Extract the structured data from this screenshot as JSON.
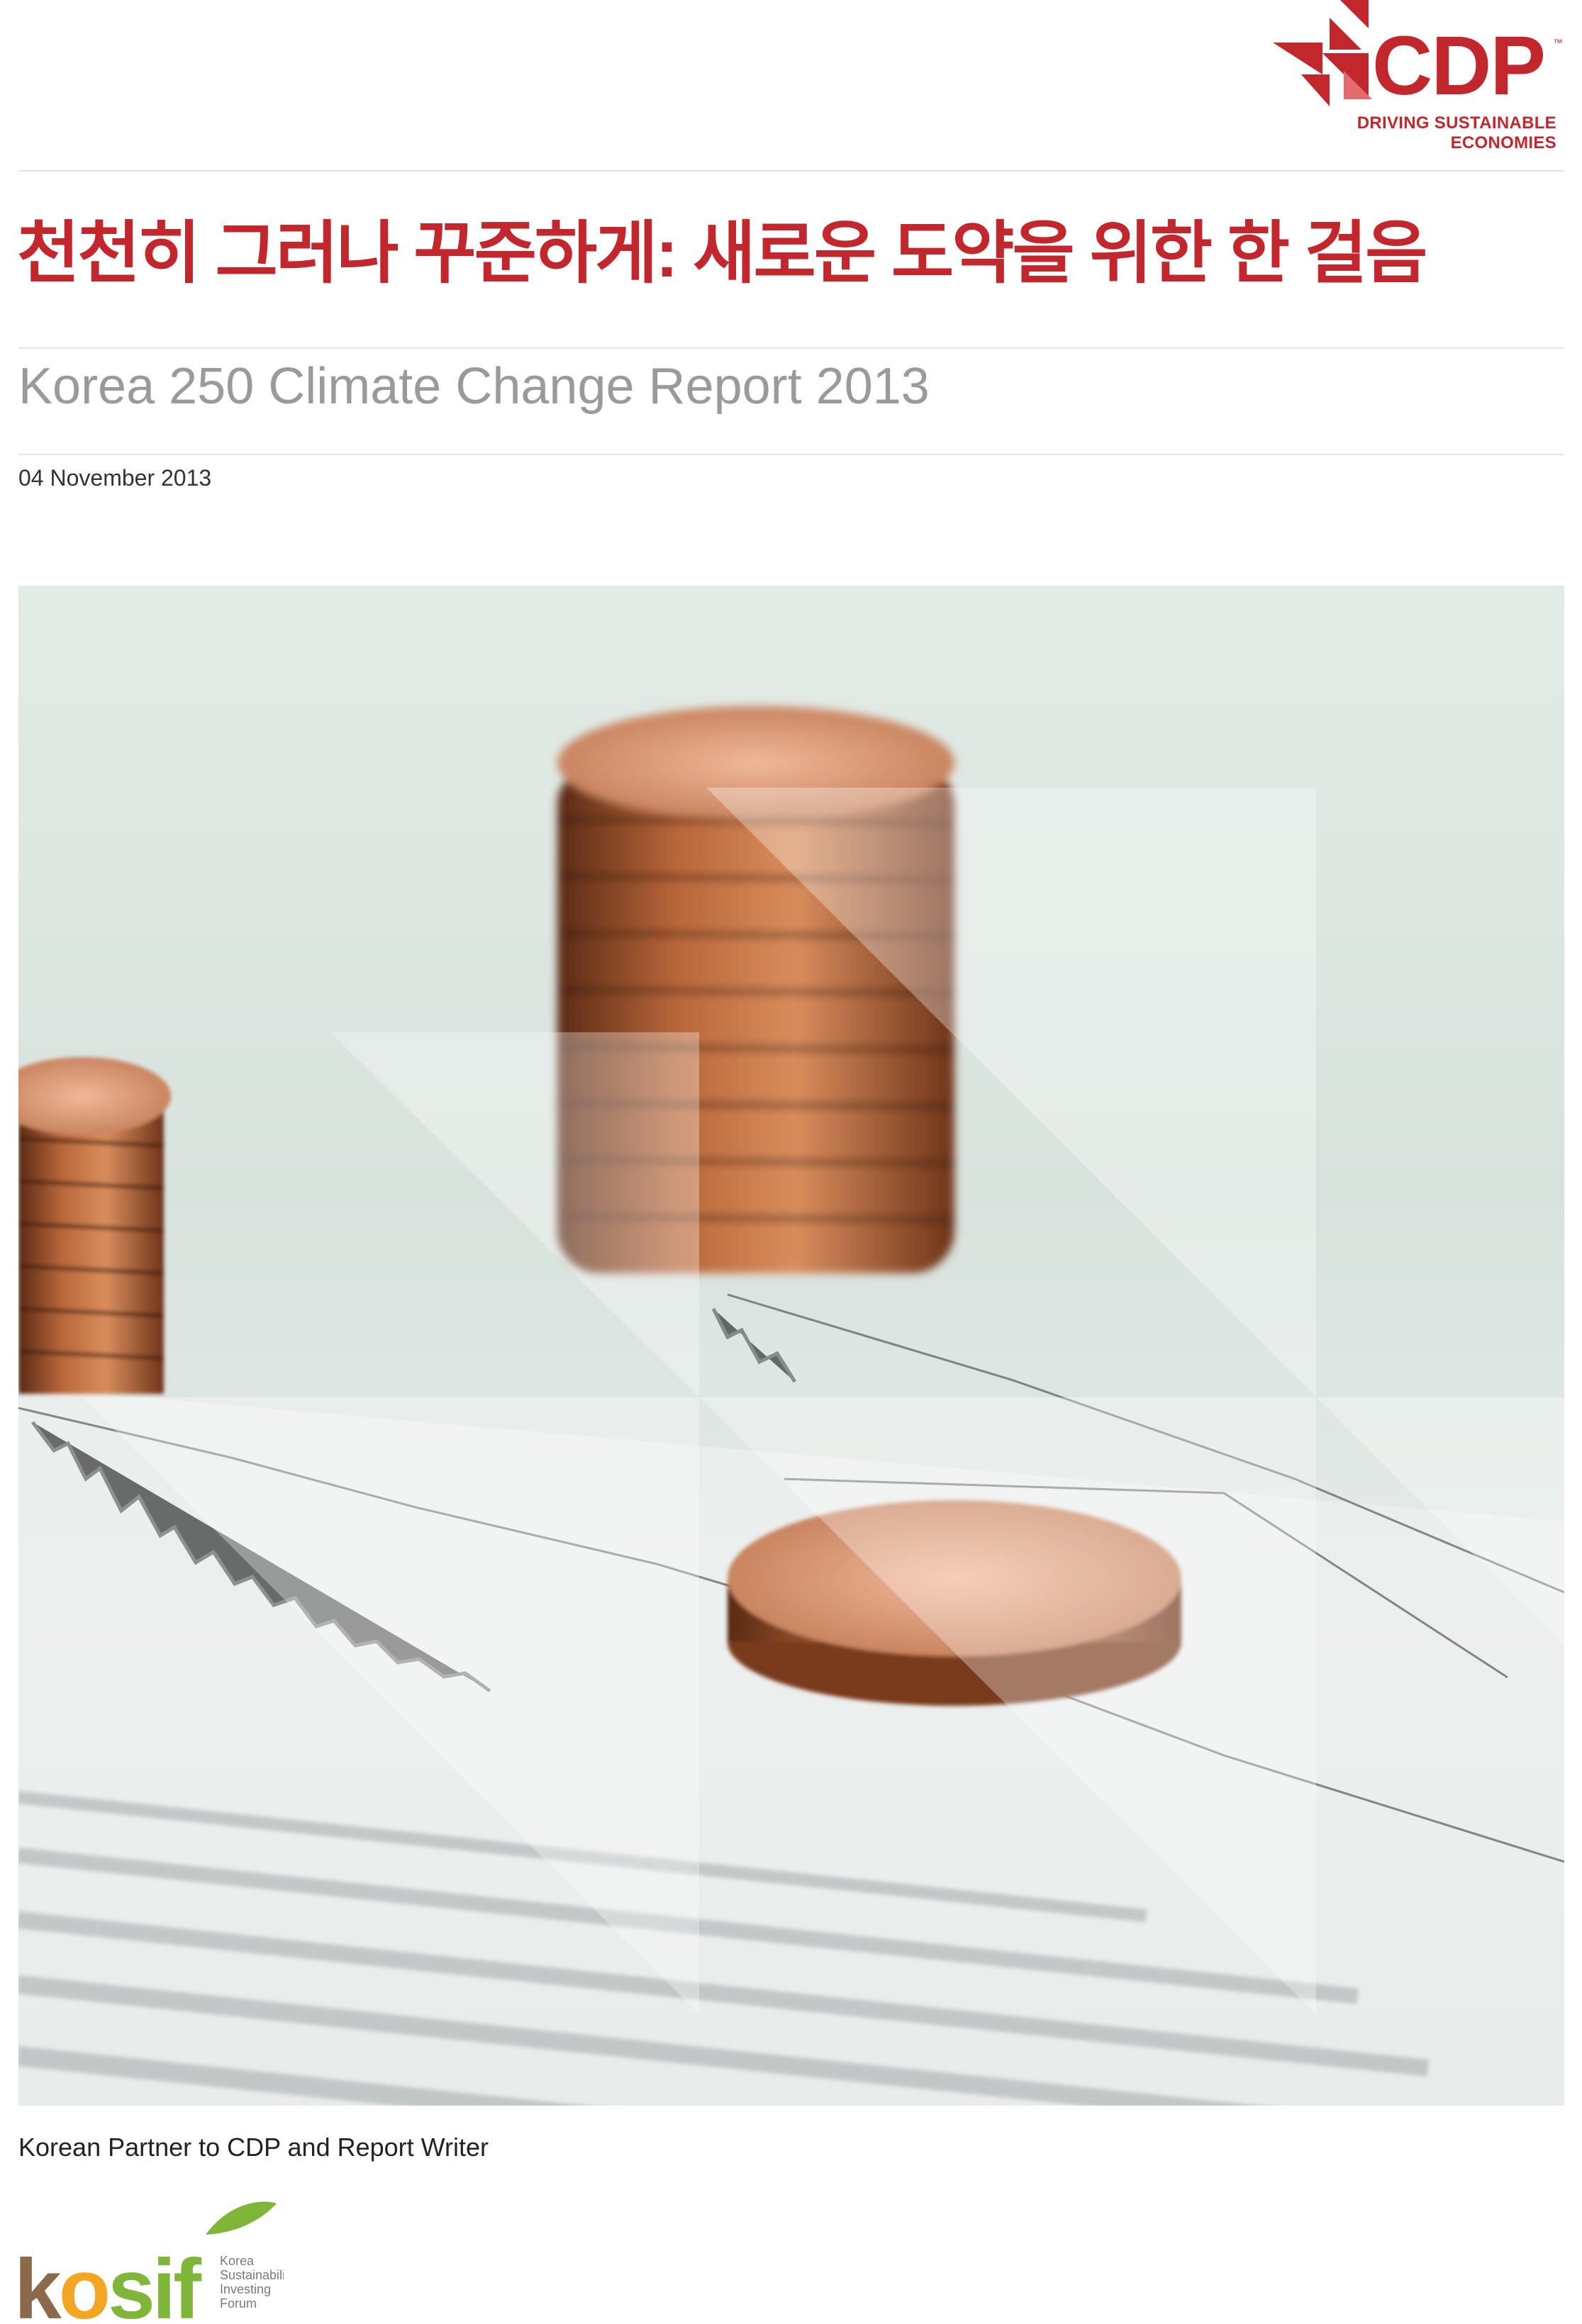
{
  "header": {
    "brand": "CDP",
    "tm": "™",
    "tagline": "DRIVING SUSTAINABLE ECONOMIES"
  },
  "title_korean": "천천히 그러나 꾸준하게: 새로운 도약을 위한 한 걸음",
  "subtitle": "Korea 250 Climate Change Report 2013",
  "date": "04 November 2013",
  "cover_image": {
    "subject": "coin-stacks-on-financial-chart"
  },
  "footer": {
    "partner_label": "Korean Partner to CDP and Report Writer",
    "partner_logo_wordmark": "kosif",
    "partner_logo_lines": [
      "Korea",
      "Sustainability",
      "Investing",
      "Forum"
    ]
  },
  "colors": {
    "brand_red": "#c2272d",
    "subtitle_gray": "#9a9a9a",
    "kosif_brown": "#8b6a4b",
    "kosif_green": "#7fb539",
    "kosif_orange": "#f2a623"
  }
}
